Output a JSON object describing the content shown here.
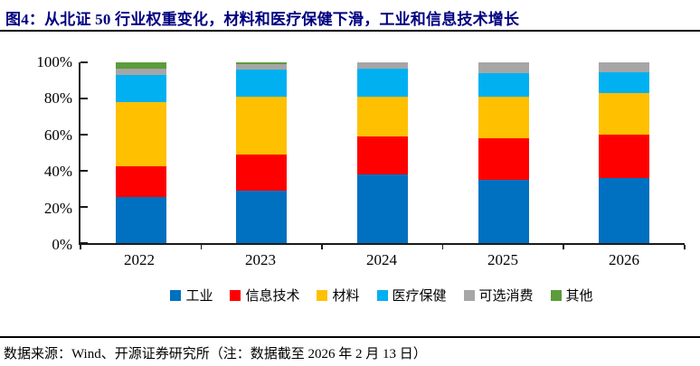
{
  "title": "图4：从北证 50 行业权重变化，材料和医疗保健下滑，工业和信息技术增长",
  "footer": {
    "source_text": "数据来源：Wind、开源证券研究所（注：数据截至 2026 年 2 月 13 日）"
  },
  "chart_data": {
    "type": "bar",
    "stacked": true,
    "title": "从北证 50 行业权重变化，材料和医疗保健下滑，工业和信息技术增长",
    "categories": [
      "2022",
      "2023",
      "2024",
      "2025",
      "2026"
    ],
    "series": [
      {
        "name": "工业",
        "color": "#0070C0",
        "values": [
          25.5,
          29.0,
          38.0,
          35.0,
          36.0
        ]
      },
      {
        "name": "信息技术",
        "color": "#FF0000",
        "values": [
          17.0,
          20.0,
          21.0,
          23.0,
          24.0
        ]
      },
      {
        "name": "材料",
        "color": "#FFC000",
        "values": [
          35.5,
          32.0,
          22.0,
          23.0,
          23.0
        ]
      },
      {
        "name": "医疗保健",
        "color": "#00B0F0",
        "values": [
          15.0,
          15.0,
          15.5,
          13.0,
          11.5
        ]
      },
      {
        "name": "可选消费",
        "color": "#A6A6A6",
        "values": [
          3.5,
          3.0,
          3.5,
          6.0,
          5.5
        ]
      },
      {
        "name": "其他",
        "color": "#5B9C3B",
        "values": [
          3.5,
          1.0,
          0.0,
          0.0,
          0.0
        ]
      }
    ],
    "ylabel": "",
    "xlabel": "",
    "ylim": [
      0,
      100
    ],
    "y_ticks": [
      "0%",
      "20%",
      "40%",
      "60%",
      "80%",
      "100%"
    ],
    "grid": false,
    "legend_position": "bottom",
    "units": "percent"
  }
}
